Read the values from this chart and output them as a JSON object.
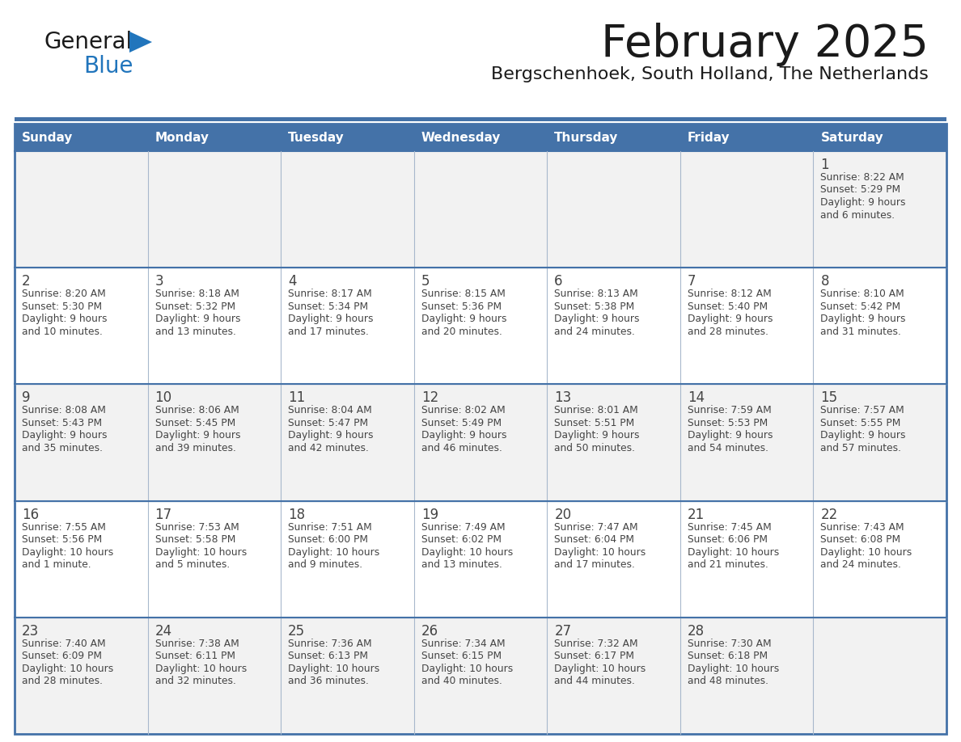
{
  "title": "February 2025",
  "subtitle": "Bergschenhoek, South Holland, The Netherlands",
  "header_color": "#4472A8",
  "header_text_color": "#FFFFFF",
  "day_names": [
    "Sunday",
    "Monday",
    "Tuesday",
    "Wednesday",
    "Thursday",
    "Friday",
    "Saturday"
  ],
  "bg_color": "#FFFFFF",
  "cell_bg_row0": "#F2F2F2",
  "cell_bg_row1": "#FFFFFF",
  "cell_bg_row2": "#F2F2F2",
  "cell_bg_row3": "#FFFFFF",
  "cell_bg_row4": "#F2F2F2",
  "border_color": "#4472A8",
  "inner_border_color": "#A8B8CC",
  "text_color": "#444444",
  "title_color": "#1a1a1a",
  "subtitle_color": "#1a1a1a",
  "logo_general_color": "#1a1a1a",
  "logo_blue_color": "#2175BC",
  "calendar": [
    [
      {
        "day": "",
        "info": ""
      },
      {
        "day": "",
        "info": ""
      },
      {
        "day": "",
        "info": ""
      },
      {
        "day": "",
        "info": ""
      },
      {
        "day": "",
        "info": ""
      },
      {
        "day": "",
        "info": ""
      },
      {
        "day": "1",
        "info": "Sunrise: 8:22 AM\nSunset: 5:29 PM\nDaylight: 9 hours\nand 6 minutes."
      }
    ],
    [
      {
        "day": "2",
        "info": "Sunrise: 8:20 AM\nSunset: 5:30 PM\nDaylight: 9 hours\nand 10 minutes."
      },
      {
        "day": "3",
        "info": "Sunrise: 8:18 AM\nSunset: 5:32 PM\nDaylight: 9 hours\nand 13 minutes."
      },
      {
        "day": "4",
        "info": "Sunrise: 8:17 AM\nSunset: 5:34 PM\nDaylight: 9 hours\nand 17 minutes."
      },
      {
        "day": "5",
        "info": "Sunrise: 8:15 AM\nSunset: 5:36 PM\nDaylight: 9 hours\nand 20 minutes."
      },
      {
        "day": "6",
        "info": "Sunrise: 8:13 AM\nSunset: 5:38 PM\nDaylight: 9 hours\nand 24 minutes."
      },
      {
        "day": "7",
        "info": "Sunrise: 8:12 AM\nSunset: 5:40 PM\nDaylight: 9 hours\nand 28 minutes."
      },
      {
        "day": "8",
        "info": "Sunrise: 8:10 AM\nSunset: 5:42 PM\nDaylight: 9 hours\nand 31 minutes."
      }
    ],
    [
      {
        "day": "9",
        "info": "Sunrise: 8:08 AM\nSunset: 5:43 PM\nDaylight: 9 hours\nand 35 minutes."
      },
      {
        "day": "10",
        "info": "Sunrise: 8:06 AM\nSunset: 5:45 PM\nDaylight: 9 hours\nand 39 minutes."
      },
      {
        "day": "11",
        "info": "Sunrise: 8:04 AM\nSunset: 5:47 PM\nDaylight: 9 hours\nand 42 minutes."
      },
      {
        "day": "12",
        "info": "Sunrise: 8:02 AM\nSunset: 5:49 PM\nDaylight: 9 hours\nand 46 minutes."
      },
      {
        "day": "13",
        "info": "Sunrise: 8:01 AM\nSunset: 5:51 PM\nDaylight: 9 hours\nand 50 minutes."
      },
      {
        "day": "14",
        "info": "Sunrise: 7:59 AM\nSunset: 5:53 PM\nDaylight: 9 hours\nand 54 minutes."
      },
      {
        "day": "15",
        "info": "Sunrise: 7:57 AM\nSunset: 5:55 PM\nDaylight: 9 hours\nand 57 minutes."
      }
    ],
    [
      {
        "day": "16",
        "info": "Sunrise: 7:55 AM\nSunset: 5:56 PM\nDaylight: 10 hours\nand 1 minute."
      },
      {
        "day": "17",
        "info": "Sunrise: 7:53 AM\nSunset: 5:58 PM\nDaylight: 10 hours\nand 5 minutes."
      },
      {
        "day": "18",
        "info": "Sunrise: 7:51 AM\nSunset: 6:00 PM\nDaylight: 10 hours\nand 9 minutes."
      },
      {
        "day": "19",
        "info": "Sunrise: 7:49 AM\nSunset: 6:02 PM\nDaylight: 10 hours\nand 13 minutes."
      },
      {
        "day": "20",
        "info": "Sunrise: 7:47 AM\nSunset: 6:04 PM\nDaylight: 10 hours\nand 17 minutes."
      },
      {
        "day": "21",
        "info": "Sunrise: 7:45 AM\nSunset: 6:06 PM\nDaylight: 10 hours\nand 21 minutes."
      },
      {
        "day": "22",
        "info": "Sunrise: 7:43 AM\nSunset: 6:08 PM\nDaylight: 10 hours\nand 24 minutes."
      }
    ],
    [
      {
        "day": "23",
        "info": "Sunrise: 7:40 AM\nSunset: 6:09 PM\nDaylight: 10 hours\nand 28 minutes."
      },
      {
        "day": "24",
        "info": "Sunrise: 7:38 AM\nSunset: 6:11 PM\nDaylight: 10 hours\nand 32 minutes."
      },
      {
        "day": "25",
        "info": "Sunrise: 7:36 AM\nSunset: 6:13 PM\nDaylight: 10 hours\nand 36 minutes."
      },
      {
        "day": "26",
        "info": "Sunrise: 7:34 AM\nSunset: 6:15 PM\nDaylight: 10 hours\nand 40 minutes."
      },
      {
        "day": "27",
        "info": "Sunrise: 7:32 AM\nSunset: 6:17 PM\nDaylight: 10 hours\nand 44 minutes."
      },
      {
        "day": "28",
        "info": "Sunrise: 7:30 AM\nSunset: 6:18 PM\nDaylight: 10 hours\nand 48 minutes."
      },
      {
        "day": "",
        "info": ""
      }
    ]
  ]
}
